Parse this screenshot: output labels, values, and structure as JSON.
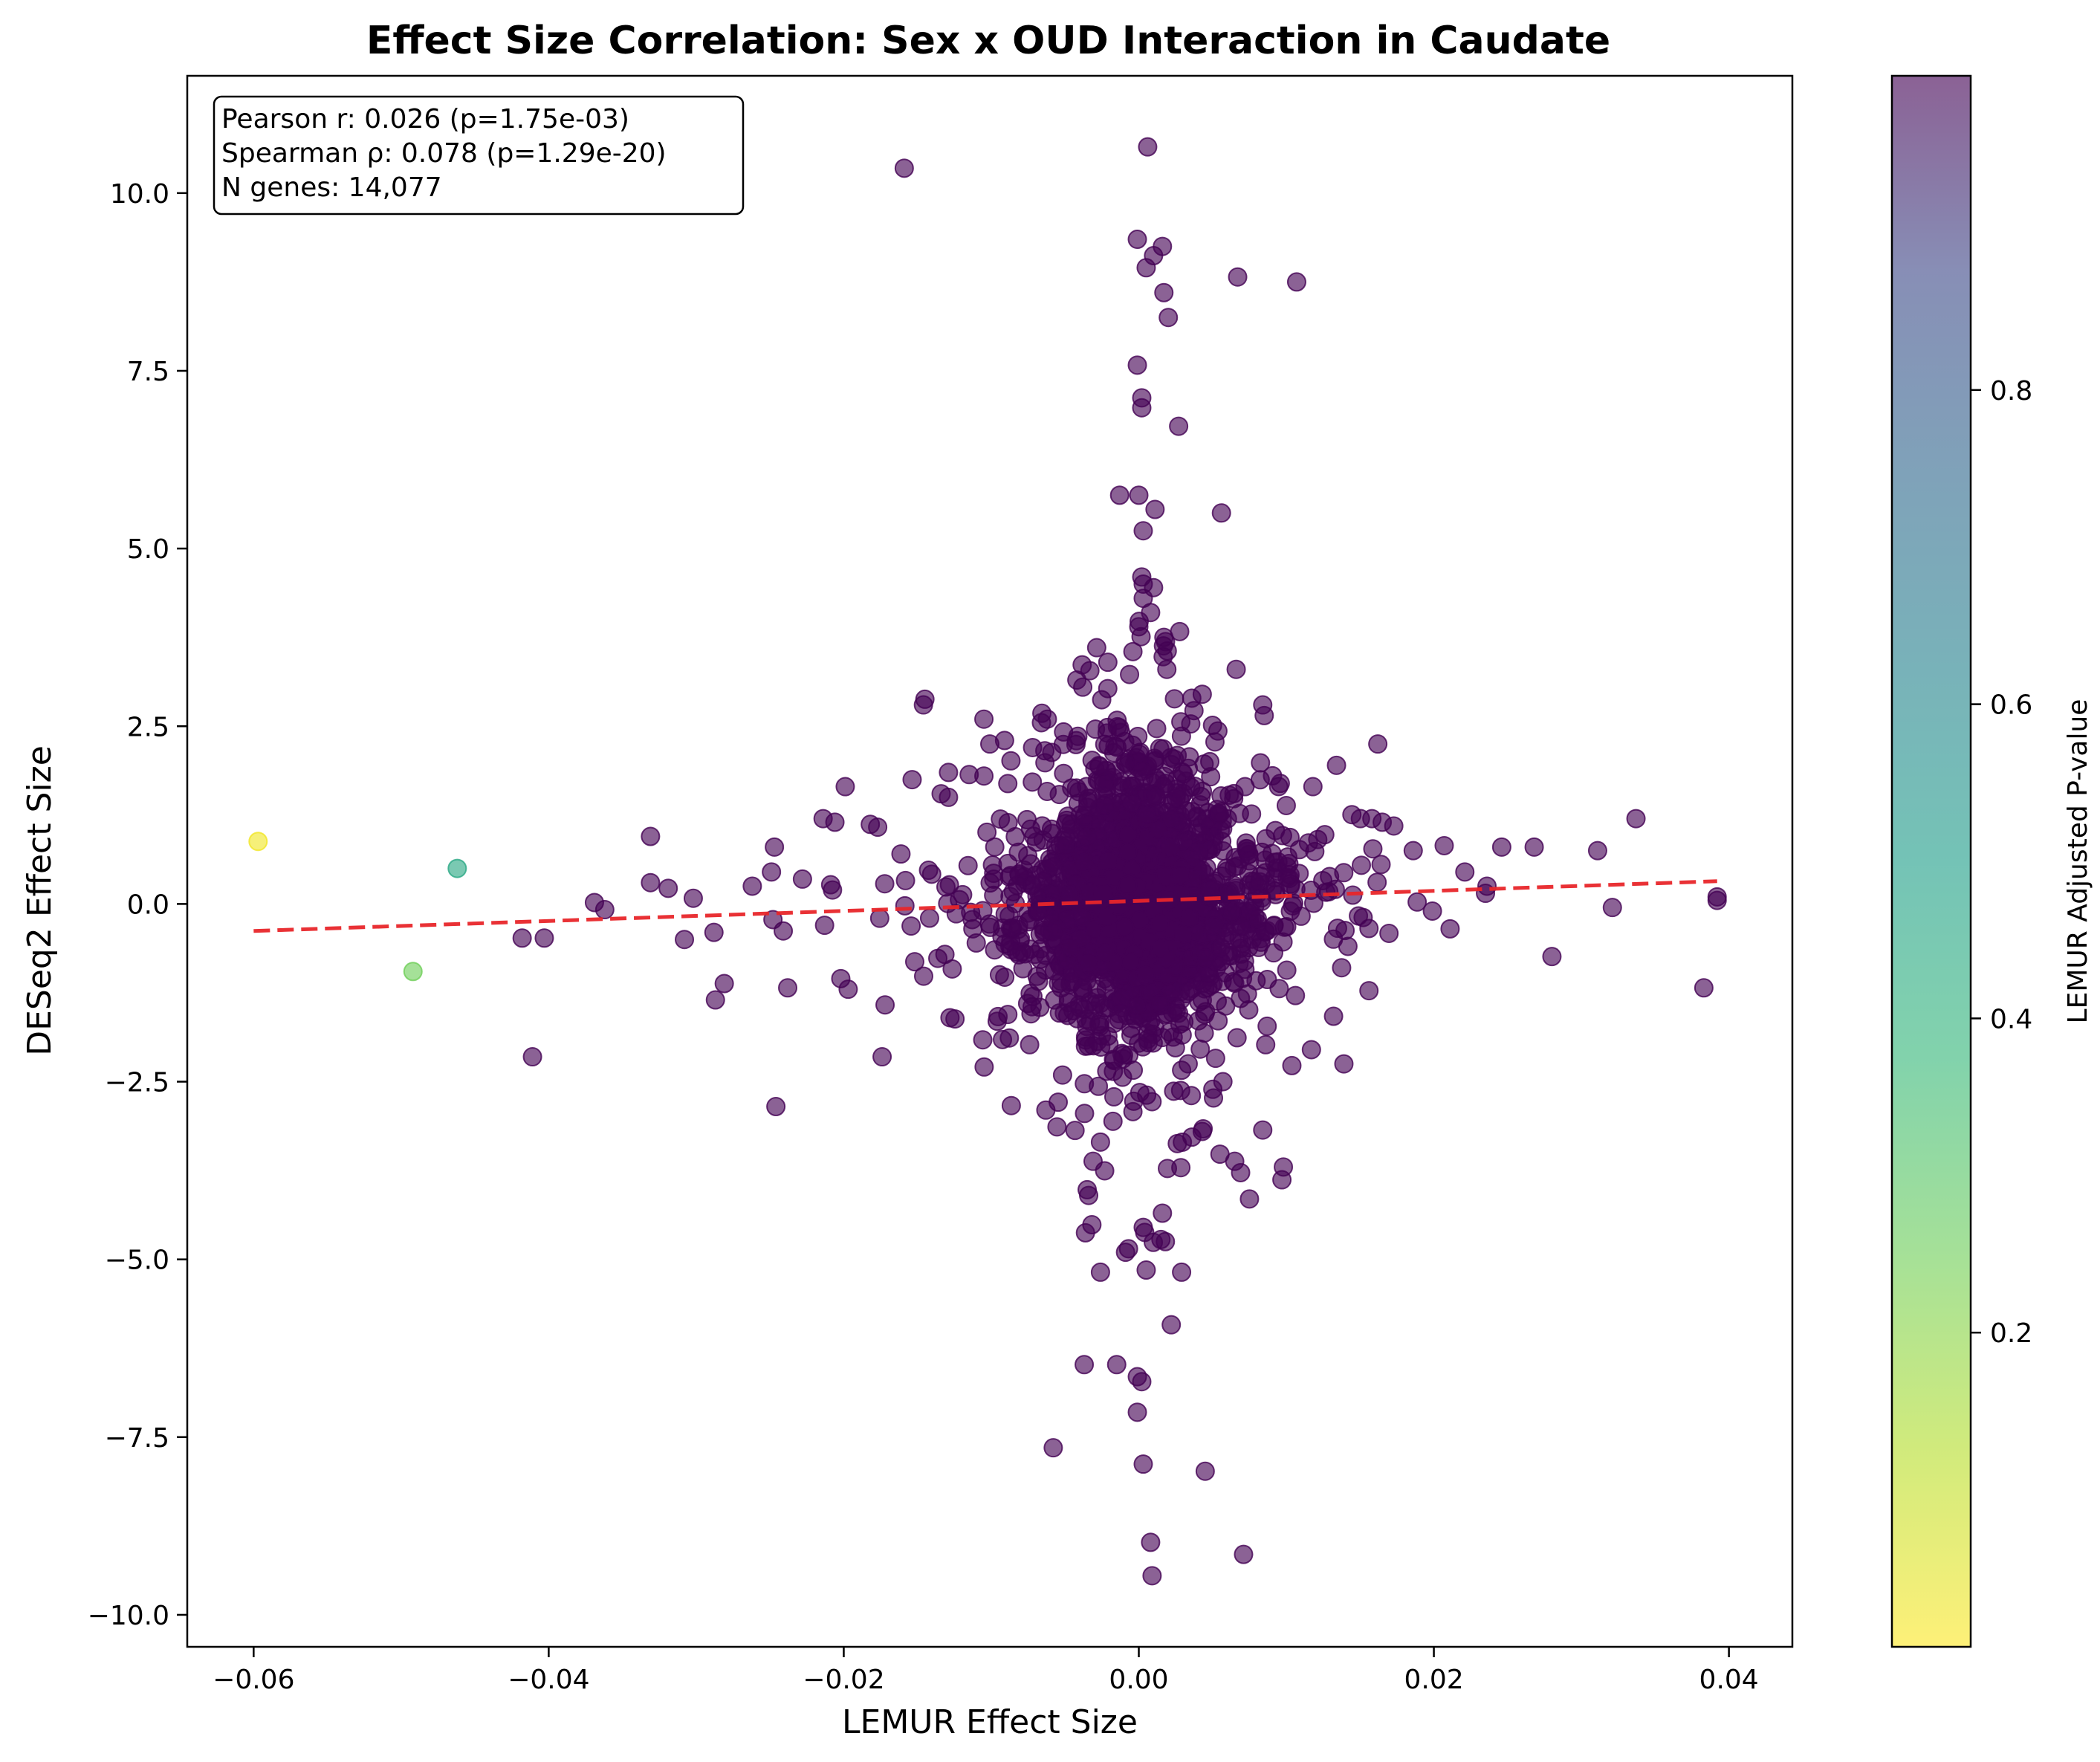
{
  "chart_data": {
    "type": "scatter",
    "title": "Effect Size Correlation: Sex x OUD Interaction in Caudate",
    "xlabel": "LEMUR Effect Size",
    "ylabel": "DESeq2 Effect Size",
    "xlim": [
      -0.0645,
      0.0443
    ],
    "ylim": [
      -10.45,
      11.65
    ],
    "x_ticks": [
      -0.06,
      -0.04,
      -0.02,
      0.0,
      0.02,
      0.04
    ],
    "x_tick_labels": [
      "−0.06",
      "−0.04",
      "−0.02",
      "0.00",
      "0.02",
      "0.04"
    ],
    "y_ticks": [
      -10,
      -7.5,
      -5,
      -2.5,
      0,
      2.5,
      5,
      7.5,
      10
    ],
    "y_tick_labels": [
      "−10.0",
      "−7.5",
      "−5.0",
      "−2.5",
      "0.0",
      "2.5",
      "5.0",
      "7.5",
      "10.0"
    ],
    "grid": false,
    "stats_box": {
      "lines": [
        "Pearson r: 0.026 (p=1.75e-03)",
        "Spearman ρ: 0.078 (p=1.29e-20)",
        "N genes: 14,077"
      ],
      "placement": "top-left"
    },
    "colorbar": {
      "label": "LEMUR Adjusted P-value",
      "colormap": "viridis_r",
      "range": [
        0.0,
        1.0
      ],
      "ticks": [
        0.2,
        0.4,
        0.6,
        0.8
      ],
      "tick_labels": [
        "0.2",
        "0.4",
        "0.6",
        "0.8"
      ]
    },
    "fit_line": {
      "x": [
        -0.06,
        0.0392
      ],
      "y": [
        -0.38,
        0.32
      ],
      "color": "#e8262a",
      "style": "dashed"
    },
    "point_color_default": "#440154",
    "points": [
      {
        "x": -0.0597,
        "y": 0.88,
        "p": 0.02
      },
      {
        "x": -0.0462,
        "y": 0.5,
        "p": 0.45
      },
      {
        "x": -0.0492,
        "y": -0.95,
        "p": 0.25
      },
      {
        "x": 0.0006,
        "y": 10.65,
        "p": 1
      },
      {
        "x": -0.0159,
        "y": 10.35,
        "p": 1
      },
      {
        "x": -0.0001,
        "y": 9.35,
        "p": 1
      },
      {
        "x": 0.0016,
        "y": 9.25,
        "p": 1
      },
      {
        "x": 0.001,
        "y": 9.12,
        "p": 1
      },
      {
        "x": 0.0005,
        "y": 8.95,
        "p": 1
      },
      {
        "x": 0.0067,
        "y": 8.82,
        "p": 1
      },
      {
        "x": 0.0107,
        "y": 8.75,
        "p": 1
      },
      {
        "x": 0.0017,
        "y": 8.6,
        "p": 1
      },
      {
        "x": 0.002,
        "y": 8.25,
        "p": 1
      },
      {
        "x": -0.0001,
        "y": 7.58,
        "p": 1
      },
      {
        "x": 0.0002,
        "y": 7.12,
        "p": 1
      },
      {
        "x": 0.0002,
        "y": 6.98,
        "p": 1
      },
      {
        "x": 0.0027,
        "y": 6.72,
        "p": 1
      },
      {
        "x": -0.0013,
        "y": 5.75,
        "p": 1
      },
      {
        "x": 0.0,
        "y": 5.75,
        "p": 1
      },
      {
        "x": 0.0011,
        "y": 5.55,
        "p": 1
      },
      {
        "x": 0.0056,
        "y": 5.5,
        "p": 1
      },
      {
        "x": 0.0003,
        "y": 5.25,
        "p": 1
      },
      {
        "x": 0.0002,
        "y": 4.6,
        "p": 1
      },
      {
        "x": 0.0003,
        "y": 4.5,
        "p": 1
      },
      {
        "x": 0.001,
        "y": 4.45,
        "p": 1
      },
      {
        "x": 0.0003,
        "y": 4.3,
        "p": 1
      },
      {
        "x": 0.0008,
        "y": 4.1,
        "p": 1
      },
      {
        "x": 0.0,
        "y": 3.9,
        "p": 1
      },
      {
        "x": 0.0017,
        "y": 3.75,
        "p": 1
      },
      {
        "x": -0.0004,
        "y": 3.55,
        "p": 1
      },
      {
        "x": 0.0066,
        "y": 3.3,
        "p": 1
      },
      {
        "x": 0.0019,
        "y": 3.3,
        "p": 1
      },
      {
        "x": -0.0021,
        "y": 3.4,
        "p": 1
      },
      {
        "x": -0.0042,
        "y": 3.15,
        "p": 1
      },
      {
        "x": -0.0038,
        "y": 3.05,
        "p": 1
      },
      {
        "x": -0.0145,
        "y": 2.88,
        "p": 1
      },
      {
        "x": -0.0146,
        "y": 2.8,
        "p": 1
      },
      {
        "x": 0.0043,
        "y": 2.95,
        "p": 1
      },
      {
        "x": 0.0084,
        "y": 2.8,
        "p": 1
      },
      {
        "x": 0.0085,
        "y": 2.65,
        "p": 1
      },
      {
        "x": -0.0105,
        "y": 2.6,
        "p": 1
      },
      {
        "x": -0.0066,
        "y": 2.55,
        "p": 1
      },
      {
        "x": -0.0062,
        "y": 2.6,
        "p": 1
      },
      {
        "x": -0.0051,
        "y": 2.42,
        "p": 1
      },
      {
        "x": -0.0091,
        "y": 2.3,
        "p": 1
      },
      {
        "x": -0.0101,
        "y": 2.25,
        "p": 1
      },
      {
        "x": -0.0072,
        "y": 2.2,
        "p": 1
      },
      {
        "x": 0.0162,
        "y": 2.25,
        "p": 1
      },
      {
        "x": 0.0134,
        "y": 1.95,
        "p": 1
      },
      {
        "x": 0.0118,
        "y": 1.65,
        "p": 1
      },
      {
        "x": 0.0072,
        "y": 1.65,
        "p": 1
      },
      {
        "x": -0.0129,
        "y": 1.85,
        "p": 1
      },
      {
        "x": -0.0115,
        "y": 1.82,
        "p": 1
      },
      {
        "x": -0.0105,
        "y": 1.8,
        "p": 1
      },
      {
        "x": -0.0199,
        "y": 1.65,
        "p": 1
      },
      {
        "x": -0.0134,
        "y": 1.55,
        "p": 1
      },
      {
        "x": -0.0129,
        "y": 1.5,
        "p": 1
      },
      {
        "x": -0.0214,
        "y": 1.2,
        "p": 1
      },
      {
        "x": -0.0206,
        "y": 1.15,
        "p": 1
      },
      {
        "x": -0.0182,
        "y": 1.12,
        "p": 1
      },
      {
        "x": -0.0177,
        "y": 1.08,
        "p": 1
      },
      {
        "x": 0.0158,
        "y": 1.2,
        "p": 1
      },
      {
        "x": 0.0165,
        "y": 1.15,
        "p": 1
      },
      {
        "x": 0.0337,
        "y": 1.2,
        "p": 1
      },
      {
        "x": -0.0331,
        "y": 0.95,
        "p": 1
      },
      {
        "x": -0.0247,
        "y": 0.8,
        "p": 1
      },
      {
        "x": 0.0246,
        "y": 0.8,
        "p": 1
      },
      {
        "x": 0.0268,
        "y": 0.8,
        "p": 1
      },
      {
        "x": 0.0311,
        "y": 0.75,
        "p": 1
      },
      {
        "x": 0.0186,
        "y": 0.75,
        "p": 1
      },
      {
        "x": 0.0207,
        "y": 0.82,
        "p": 1
      },
      {
        "x": -0.0249,
        "y": 0.45,
        "p": 1
      },
      {
        "x": -0.0262,
        "y": 0.25,
        "p": 1
      },
      {
        "x": -0.0319,
        "y": 0.22,
        "p": 1
      },
      {
        "x": -0.0331,
        "y": 0.3,
        "p": 1
      },
      {
        "x": -0.0302,
        "y": 0.08,
        "p": 1
      },
      {
        "x": -0.0369,
        "y": 0.02,
        "p": 1
      },
      {
        "x": -0.0362,
        "y": -0.08,
        "p": 1
      },
      {
        "x": -0.0228,
        "y": 0.35,
        "p": 1
      },
      {
        "x": -0.0213,
        "y": -0.3,
        "p": 1
      },
      {
        "x": 0.0392,
        "y": 0.1,
        "p": 1
      },
      {
        "x": 0.0392,
        "y": 0.05,
        "p": 1
      },
      {
        "x": 0.0321,
        "y": -0.05,
        "p": 1
      },
      {
        "x": 0.0236,
        "y": 0.25,
        "p": 1
      },
      {
        "x": 0.0221,
        "y": 0.45,
        "p": 1
      },
      {
        "x": 0.0235,
        "y": 0.15,
        "p": 1
      },
      {
        "x": 0.0199,
        "y": -0.1,
        "p": 1
      },
      {
        "x": 0.0211,
        "y": -0.35,
        "p": 1
      },
      {
        "x": -0.0248,
        "y": -0.22,
        "p": 1
      },
      {
        "x": -0.0241,
        "y": -0.38,
        "p": 1
      },
      {
        "x": -0.0288,
        "y": -0.4,
        "p": 1
      },
      {
        "x": -0.0308,
        "y": -0.5,
        "p": 1
      },
      {
        "x": -0.0418,
        "y": -0.48,
        "p": 1
      },
      {
        "x": -0.0403,
        "y": -0.48,
        "p": 1
      },
      {
        "x": -0.0281,
        "y": -1.12,
        "p": 1
      },
      {
        "x": -0.0287,
        "y": -1.35,
        "p": 1
      },
      {
        "x": -0.0238,
        "y": -1.18,
        "p": 1
      },
      {
        "x": -0.0202,
        "y": -1.05,
        "p": 1
      },
      {
        "x": -0.0197,
        "y": -1.2,
        "p": 1
      },
      {
        "x": -0.0172,
        "y": -1.42,
        "p": 1
      },
      {
        "x": -0.0128,
        "y": -1.6,
        "p": 1
      },
      {
        "x": -0.0096,
        "y": -1.65,
        "p": 1
      },
      {
        "x": -0.0074,
        "y": -1.98,
        "p": 1
      },
      {
        "x": -0.0174,
        "y": -2.15,
        "p": 1
      },
      {
        "x": -0.0411,
        "y": -2.15,
        "p": 1
      },
      {
        "x": -0.0246,
        "y": -2.85,
        "p": 1
      },
      {
        "x": 0.0383,
        "y": -1.18,
        "p": 1
      },
      {
        "x": 0.0156,
        "y": -1.22,
        "p": 1
      },
      {
        "x": 0.0132,
        "y": -1.58,
        "p": 1
      },
      {
        "x": 0.0087,
        "y": -1.72,
        "p": 1
      },
      {
        "x": 0.0086,
        "y": -1.98,
        "p": 1
      },
      {
        "x": 0.0117,
        "y": -2.05,
        "p": 1
      },
      {
        "x": 0.0139,
        "y": -2.25,
        "p": 1
      },
      {
        "x": 0.0057,
        "y": -2.5,
        "p": 1
      },
      {
        "x": -0.0063,
        "y": -2.9,
        "p": 1
      },
      {
        "x": 0.0084,
        "y": -3.18,
        "p": 1
      },
      {
        "x": 0.0043,
        "y": -3.2,
        "p": 1
      },
      {
        "x": 0.0036,
        "y": -3.28,
        "p": 1
      },
      {
        "x": -0.0026,
        "y": -3.35,
        "p": 1
      },
      {
        "x": 0.0055,
        "y": -3.52,
        "p": 1
      },
      {
        "x": 0.0065,
        "y": -3.62,
        "p": 1
      },
      {
        "x": -0.0031,
        "y": -3.62,
        "p": 1
      },
      {
        "x": 0.0098,
        "y": -3.7,
        "p": 1
      },
      {
        "x": 0.0069,
        "y": -3.78,
        "p": 1
      },
      {
        "x": 0.0097,
        "y": -3.88,
        "p": 1
      },
      {
        "x": -0.0035,
        "y": -4.02,
        "p": 1
      },
      {
        "x": -0.0034,
        "y": -4.1,
        "p": 1
      },
      {
        "x": 0.0075,
        "y": -4.15,
        "p": 1
      },
      {
        "x": 0.0016,
        "y": -4.35,
        "p": 1
      },
      {
        "x": 0.0003,
        "y": -4.55,
        "p": 1
      },
      {
        "x": 0.0004,
        "y": -4.62,
        "p": 1
      },
      {
        "x": 0.0015,
        "y": -4.72,
        "p": 1
      },
      {
        "x": 0.0018,
        "y": -4.75,
        "p": 1
      },
      {
        "x": -0.0007,
        "y": -4.85,
        "p": 1
      },
      {
        "x": -0.0009,
        "y": -4.9,
        "p": 1
      },
      {
        "x": -0.0026,
        "y": -5.18,
        "p": 1
      },
      {
        "x": 0.0005,
        "y": -5.15,
        "p": 1
      },
      {
        "x": 0.0029,
        "y": -5.18,
        "p": 1
      },
      {
        "x": 0.0022,
        "y": -5.92,
        "p": 1
      },
      {
        "x": -0.0037,
        "y": -6.48,
        "p": 1
      },
      {
        "x": -0.0015,
        "y": -6.48,
        "p": 1
      },
      {
        "x": -0.0001,
        "y": -6.65,
        "p": 1
      },
      {
        "x": 0.0002,
        "y": -6.72,
        "p": 1
      },
      {
        "x": -0.0001,
        "y": -7.15,
        "p": 1
      },
      {
        "x": -0.0058,
        "y": -7.65,
        "p": 1
      },
      {
        "x": 0.0003,
        "y": -7.88,
        "p": 1
      },
      {
        "x": 0.0045,
        "y": -7.98,
        "p": 1
      },
      {
        "x": 0.0008,
        "y": -8.98,
        "p": 1
      },
      {
        "x": 0.0071,
        "y": -9.15,
        "p": 1
      },
      {
        "x": 0.0009,
        "y": -9.45,
        "p": 1
      }
    ]
  }
}
